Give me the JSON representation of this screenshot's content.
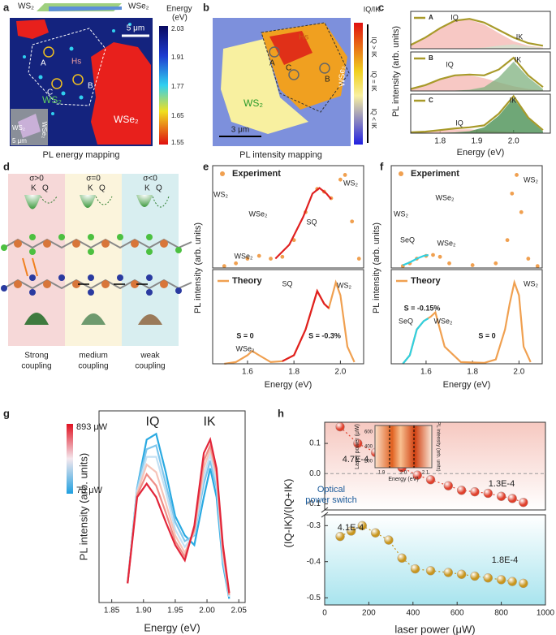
{
  "map_a": {
    "label": "a",
    "schematic": [
      "WS₂",
      "WSe₂"
    ],
    "scale": "5 μm",
    "colorbar_title": [
      "Energy",
      "(eV)"
    ],
    "colorbar_ticks": [
      "2.03",
      "1.91",
      "1.77",
      "1.65",
      "1.55"
    ],
    "labels": [
      "Hs",
      "A",
      "B",
      "C",
      "WS₂",
      "WSe₂"
    ],
    "inset": [
      "WS₂",
      "WSe₂",
      "5 μm"
    ],
    "caption": "PL energy mapping"
  },
  "map_b": {
    "label": "b",
    "colorbar_title": "IQ/IK",
    "colorbar_labels": [
      "IQ > IK",
      "IQ = IK",
      "IQ < IK"
    ],
    "labels": [
      "Hs",
      "A",
      "C",
      "B",
      "WSe₂",
      "WS₂"
    ],
    "scale": "3 μm",
    "caption": "PL intensity mapping"
  },
  "diagram_d": {
    "label": "d",
    "strains": [
      "σ>0",
      "σ=0",
      "σ<0"
    ],
    "valleys": [
      "K",
      "Q"
    ],
    "captions": [
      [
        "Strong",
        "coupling"
      ],
      [
        "medium",
        "coupling"
      ],
      [
        "weak",
        "coupling"
      ]
    ]
  },
  "chart_data": [
    {
      "type": "line",
      "panel": "c",
      "ylabel": "PL intensity (arb. units)",
      "xlim": [
        1.72,
        2.1
      ],
      "ylim": [
        0,
        1
      ],
      "series": [
        {
          "color": "#f4b6b0",
          "style": "fill",
          "x": [
            1.72,
            1.76,
            1.8,
            1.84,
            1.88,
            1.92,
            1.96,
            2.0,
            2.04,
            2.08
          ],
          "values": [
            0.08,
            0.28,
            0.55,
            0.75,
            0.78,
            0.65,
            0.42,
            0.2,
            0.08,
            0.03
          ]
        },
        {
          "color": "#cfe3cf",
          "style": "fill",
          "x": [
            1.72,
            1.76,
            1.8,
            1.84,
            1.88,
            1.92,
            1.96,
            2.0,
            2.04,
            2.08
          ],
          "values": [
            0,
            0,
            0,
            0,
            0.01,
            0.03,
            0.08,
            0.12,
            0.06,
            0.02
          ]
        },
        {
          "name": "A",
          "color": "#a89a2a",
          "style": "line",
          "x": [
            1.72,
            1.76,
            1.8,
            1.84,
            1.88,
            1.92,
            1.96,
            2.0,
            2.04,
            2.08
          ],
          "values": [
            0.1,
            0.3,
            0.55,
            0.75,
            0.8,
            0.7,
            0.5,
            0.3,
            0.15,
            0.08
          ]
        }
      ],
      "annotations": [
        "IQ",
        "IK"
      ]
    },
    {
      "type": "line",
      "xlim": [
        1.72,
        2.1
      ],
      "ylim": [
        0,
        1
      ],
      "series": [
        {
          "color": "#f4b6b0",
          "style": "fill",
          "x": [
            1.72,
            1.76,
            1.8,
            1.84,
            1.88,
            1.92,
            1.96,
            2.0,
            2.04,
            2.08
          ],
          "values": [
            0.04,
            0.14,
            0.28,
            0.38,
            0.4,
            0.33,
            0.22,
            0.12,
            0.05,
            0.02
          ]
        },
        {
          "color": "#7fb27f",
          "style": "fill",
          "x": [
            1.72,
            1.76,
            1.8,
            1.84,
            1.88,
            1.92,
            1.96,
            2.0,
            2.04,
            2.08
          ],
          "values": [
            0,
            0,
            0,
            0.01,
            0.03,
            0.1,
            0.35,
            0.75,
            0.35,
            0.05
          ]
        },
        {
          "name": "B",
          "color": "#a89a2a",
          "style": "line",
          "x": [
            1.72,
            1.76,
            1.8,
            1.84,
            1.88,
            1.92,
            1.96,
            2.0,
            2.04,
            2.08
          ],
          "values": [
            0.05,
            0.15,
            0.3,
            0.4,
            0.42,
            0.4,
            0.55,
            0.85,
            0.4,
            0.1
          ]
        }
      ],
      "annotations": [
        "IQ",
        "IK"
      ]
    },
    {
      "type": "line",
      "xlabel": "Energy (eV)",
      "xlim": [
        1.72,
        2.1
      ],
      "ylim": [
        0,
        1
      ],
      "xticks": [
        1.8,
        1.9,
        {
          "value": 2,
          "label": "2.0"
        }
      ],
      "series": [
        {
          "color": "#f4b6b0",
          "style": "fill",
          "x": [
            1.72,
            1.76,
            1.8,
            1.84,
            1.88,
            1.92,
            1.96,
            2.0,
            2.04,
            2.08
          ],
          "values": [
            0.02,
            0.04,
            0.07,
            0.1,
            0.1,
            0.07,
            0.05,
            0.03,
            0.01,
            0
          ]
        },
        {
          "color": "#3f8a4a",
          "style": "fill",
          "x": [
            1.72,
            1.76,
            1.8,
            1.84,
            1.88,
            1.92,
            1.96,
            2.0,
            2.04,
            2.08
          ],
          "values": [
            0,
            0,
            0.01,
            0.02,
            0.05,
            0.15,
            0.45,
            0.9,
            0.38,
            0.05
          ]
        },
        {
          "name": "C",
          "color": "#a89a2a",
          "style": "line",
          "x": [
            1.72,
            1.76,
            1.8,
            1.84,
            1.88,
            1.92,
            1.96,
            2.0,
            2.04,
            2.08
          ],
          "values": [
            0.02,
            0.04,
            0.08,
            0.12,
            0.15,
            0.2,
            0.5,
            0.95,
            0.4,
            0.08
          ]
        }
      ],
      "annotations": [
        "IQ",
        "IK"
      ]
    },
    {
      "type": "line",
      "panel": "e",
      "ylabel": "PL intensity (arb. units)",
      "xlim": [
        1.45,
        2.1
      ],
      "ylim": [
        0,
        1.1
      ],
      "series": [
        {
          "name": "Experiment",
          "color": "#f0a050",
          "style": "dots",
          "x": [
            1.5,
            1.55,
            1.6,
            1.65,
            1.7,
            1.75,
            1.8,
            1.85,
            1.9,
            1.93,
            1.96,
            2.0,
            2.02,
            2.05,
            2.08
          ],
          "values": [
            0.02,
            0.05,
            0.1,
            0.13,
            0.1,
            0.12,
            0.3,
            0.6,
            0.85,
            0.82,
            0.75,
            0.95,
            1.0,
            0.5,
            0.1
          ]
        },
        {
          "color": "#e02020",
          "style": "line",
          "x": [
            1.72,
            1.78,
            1.84,
            1.88,
            1.91,
            1.94,
            1.96
          ],
          "values": [
            0.1,
            0.25,
            0.55,
            0.8,
            0.86,
            0.8,
            0.74
          ]
        }
      ],
      "annotations": [
        "WS₂",
        "SQ",
        "WSe₂",
        "WS₂",
        "WSe₂"
      ]
    },
    {
      "type": "line",
      "xlabel": "Energy (eV)",
      "xlim": [
        1.45,
        2.1
      ],
      "ylim": [
        0,
        1.1
      ],
      "xticks": [
        1.6,
        1.8,
        {
          "value": 2,
          "label": "2.0"
        }
      ],
      "series": [
        {
          "name": "Theory",
          "color": "#f0a050",
          "style": "line",
          "x": [
            1.5,
            1.55,
            1.6,
            1.62,
            1.65,
            1.7,
            1.75,
            1.8,
            1.85,
            1.9,
            1.93,
            1.95,
            1.98,
            2.0,
            2.03,
            2.06
          ],
          "values": [
            0,
            0.02,
            0.1,
            0.15,
            0.1,
            0.02,
            0.03,
            0.1,
            0.4,
            0.85,
            0.7,
            0.65,
            0.95,
            0.8,
            0.2,
            0.02
          ]
        },
        {
          "color": "#e02020",
          "style": "line",
          "x": [
            1.75,
            1.8,
            1.85,
            1.9,
            1.93,
            1.95
          ],
          "values": [
            0.03,
            0.1,
            0.4,
            0.85,
            0.7,
            0.65
          ]
        }
      ],
      "annotations": [
        "SQ",
        "WS₂",
        "S = 0",
        "WSe₂",
        "S = -0.3%"
      ]
    },
    {
      "type": "line",
      "panel": "f",
      "ylabel": "PL intensity (arb. units)",
      "xlim": [
        1.45,
        2.1
      ],
      "ylim": [
        0,
        1.1
      ],
      "series": [
        {
          "name": "Experiment",
          "color": "#f0a050",
          "style": "dots",
          "x": [
            1.5,
            1.53,
            1.56,
            1.6,
            1.63,
            1.66,
            1.7,
            1.8,
            1.9,
            1.95,
            1.97,
            1.99,
            2.01,
            2.04,
            2.08
          ],
          "values": [
            0.02,
            0.05,
            0.1,
            0.13,
            0.14,
            0.12,
            0.05,
            0.03,
            0.05,
            0.3,
            0.8,
            1.0,
            0.6,
            0.1,
            0.02
          ]
        },
        {
          "color": "#30d0e0",
          "style": "line",
          "x": [
            1.5,
            1.53,
            1.56,
            1.59,
            1.61
          ],
          "values": [
            0.03,
            0.06,
            0.1,
            0.13,
            0.14
          ]
        }
      ],
      "annotations": [
        "SeQ",
        "WSe₂",
        "WS₂",
        "WSe₂",
        "WS₂"
      ]
    },
    {
      "type": "line",
      "xlabel": "Energy (eV)",
      "xlim": [
        1.45,
        2.1
      ],
      "ylim": [
        0,
        1.1
      ],
      "xticks": [
        1.6,
        1.8,
        {
          "value": 2,
          "label": "2.0"
        }
      ],
      "series": [
        {
          "name": "Theory",
          "color": "#f0a050",
          "style": "line",
          "x": [
            1.5,
            1.53,
            1.56,
            1.59,
            1.62,
            1.64,
            1.68,
            1.75,
            1.85,
            1.9,
            1.94,
            1.96,
            1.98,
            2.0,
            2.02,
            2.05
          ],
          "values": [
            0,
            0.1,
            0.4,
            0.5,
            0.55,
            0.6,
            0.2,
            0.02,
            0.01,
            0.05,
            0.4,
            0.7,
            0.95,
            0.8,
            0.2,
            0.02
          ]
        },
        {
          "color": "#30d0e0",
          "style": "line",
          "x": [
            1.5,
            1.53,
            1.56,
            1.59,
            1.61
          ],
          "values": [
            0,
            0.1,
            0.4,
            0.5,
            0.53
          ]
        }
      ],
      "annotations": [
        "SeQ",
        "WSe₂",
        "S = -0.15%",
        "S = 0",
        "WS₂"
      ]
    },
    {
      "type": "line",
      "panel": "g",
      "xlabel": "Energy (eV)",
      "ylabel": "PL intensity (arb. units)",
      "xlim": [
        1.83,
        2.06
      ],
      "ylim": [
        0,
        1
      ],
      "xticks": [
        1.85,
        {
          "value": 1.9,
          "label": "1.90"
        },
        1.95,
        {
          "value": 2,
          "label": "2.00"
        },
        2.05
      ],
      "colorbar_labels": [
        "893 μW",
        "73 μW"
      ],
      "series": [
        {
          "color": "#29a9e1",
          "style": "line",
          "x": [
            1.875,
            1.89,
            1.905,
            1.92,
            1.935,
            1.95,
            1.965,
            1.98,
            1.995,
            2.005,
            2.015,
            2.025,
            2.035
          ],
          "values": [
            0.1,
            0.6,
            0.85,
            0.88,
            0.68,
            0.45,
            0.35,
            0.3,
            0.55,
            0.7,
            0.55,
            0.2,
            0.02
          ]
        },
        {
          "color": "#7fc6ec",
          "style": "line",
          "x": [
            1.875,
            1.89,
            1.905,
            1.92,
            1.935,
            1.95,
            1.965,
            1.98,
            1.995,
            2.005,
            2.015,
            2.025,
            2.035
          ],
          "values": [
            0.1,
            0.6,
            0.8,
            0.82,
            0.62,
            0.42,
            0.32,
            0.35,
            0.62,
            0.74,
            0.6,
            0.22,
            0.03
          ]
        },
        {
          "color": "#c3e0f3",
          "style": "line",
          "x": [
            1.875,
            1.89,
            1.905,
            1.92,
            1.935,
            1.95,
            1.965,
            1.98,
            1.995,
            2.005,
            2.015,
            2.025,
            2.035
          ],
          "values": [
            0.1,
            0.58,
            0.76,
            0.76,
            0.58,
            0.38,
            0.29,
            0.36,
            0.66,
            0.77,
            0.63,
            0.24,
            0.03
          ]
        },
        {
          "color": "#f6c4b8",
          "style": "line",
          "x": [
            1.875,
            1.89,
            1.905,
            1.92,
            1.935,
            1.95,
            1.965,
            1.98,
            1.995,
            2.005,
            2.015,
            2.025,
            2.035
          ],
          "values": [
            0.1,
            0.57,
            0.72,
            0.68,
            0.52,
            0.35,
            0.26,
            0.37,
            0.7,
            0.8,
            0.66,
            0.26,
            0.04
          ]
        },
        {
          "color": "#ef8d86",
          "style": "line",
          "x": [
            1.875,
            1.89,
            1.905,
            1.92,
            1.935,
            1.95,
            1.965,
            1.98,
            1.995,
            2.005,
            2.015,
            2.025,
            2.035
          ],
          "values": [
            0.1,
            0.56,
            0.67,
            0.61,
            0.47,
            0.32,
            0.24,
            0.38,
            0.74,
            0.82,
            0.68,
            0.28,
            0.04
          ]
        },
        {
          "color": "#e2263a",
          "style": "line",
          "x": [
            1.875,
            1.89,
            1.905,
            1.92,
            1.935,
            1.95,
            1.965,
            1.98,
            1.995,
            2.005,
            2.015,
            2.025,
            2.035
          ],
          "values": [
            0.1,
            0.55,
            0.62,
            0.55,
            0.42,
            0.3,
            0.22,
            0.4,
            0.78,
            0.85,
            0.7,
            0.3,
            0.05
          ]
        }
      ],
      "annotations": [
        "IQ",
        "IK"
      ]
    },
    {
      "type": "scatter",
      "panel": "h",
      "ylabel": "(IQ-IK)/(IQ+IK)",
      "xlim": [
        0,
        1000
      ],
      "ylim": [
        -0.12,
        0.17
      ],
      "yticks": [
        -0.1,
        {
          "value": 0,
          "label": "0.0"
        },
        0.1
      ],
      "inset": {
        "ylabel": "Laser power (μW)",
        "yticks": [
          "600",
          "400",
          "200"
        ],
        "xticks": [
          "1.9",
          "2.0",
          "2.1"
        ],
        "xlabel": "Energy (eV)",
        "cbar_label": "PL intensity (arb. units)"
      },
      "series": [
        {
          "color": "#e0402c",
          "style": "balls",
          "x": [
            70,
            150,
            230,
            290,
            350,
            420,
            480,
            560,
            620,
            680,
            740,
            800,
            850,
            900
          ],
          "values": [
            0.155,
            0.1,
            0.07,
            0.05,
            0.02,
            -0.005,
            -0.02,
            -0.04,
            -0.055,
            -0.06,
            -0.065,
            -0.075,
            -0.082,
            -0.095
          ]
        }
      ],
      "annotations": [
        "4.7E-4",
        "1.3E-4",
        "Optical",
        "power switch"
      ]
    },
    {
      "type": "scatter",
      "xlabel": "laser power (μW)",
      "xlim": [
        0,
        1000
      ],
      "ylim": [
        -0.52,
        -0.27
      ],
      "xticks": [
        0,
        200,
        400,
        600,
        800,
        1000
      ],
      "yticks": [
        -0.3,
        -0.4,
        -0.5
      ],
      "series": [
        {
          "color": "#c8961e",
          "style": "balls",
          "x": [
            70,
            120,
            170,
            230,
            290,
            350,
            410,
            480,
            560,
            620,
            680,
            740,
            800,
            850,
            900
          ],
          "values": [
            -0.33,
            -0.315,
            -0.3,
            -0.32,
            -0.34,
            -0.39,
            -0.42,
            -0.425,
            -0.43,
            -0.435,
            -0.44,
            -0.445,
            -0.45,
            -0.455,
            -0.46
          ]
        }
      ],
      "annotations": [
        "4.1E-4",
        "1.8E-4"
      ]
    }
  ]
}
